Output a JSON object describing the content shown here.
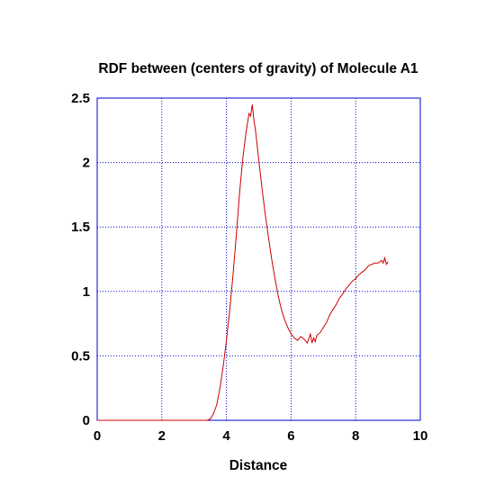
{
  "chart_data": {
    "type": "line",
    "title": "RDF between (centers of gravity) of Molecule A1",
    "xlabel": "Distance",
    "ylabel": "",
    "xlim": [
      0,
      10
    ],
    "ylim": [
      0,
      2.5
    ],
    "x_ticks": [
      "0",
      "2",
      "4",
      "6",
      "8",
      "10"
    ],
    "y_ticks": [
      "0",
      "0.5",
      "1",
      "1.5",
      "2",
      "2.5"
    ],
    "grid": true,
    "legend": "none",
    "colors": {
      "series": "#cc0000",
      "grid": "#0000cc",
      "axes": "#0000cc"
    },
    "series": [
      {
        "x": [
          0,
          1,
          2,
          3,
          3.4,
          3.5,
          3.6,
          3.7,
          3.8,
          3.9,
          4.0,
          4.1,
          4.2,
          4.3,
          4.4,
          4.5,
          4.6,
          4.7,
          4.75,
          4.8,
          4.85,
          4.9,
          5.0,
          5.1,
          5.2,
          5.3,
          5.4,
          5.5,
          5.6,
          5.7,
          5.8,
          5.9,
          6.0,
          6.1,
          6.2,
          6.3,
          6.4,
          6.5,
          6.6,
          6.65,
          6.7,
          6.75,
          6.8,
          6.9,
          7.0,
          7.1,
          7.2,
          7.3,
          7.4,
          7.5,
          7.6,
          7.7,
          7.8,
          7.9,
          8.0,
          8.1,
          8.2,
          8.3,
          8.4,
          8.5,
          8.6,
          8.7,
          8.8,
          8.85,
          8.9,
          8.95,
          9.0
        ],
        "y": [
          0,
          0,
          0,
          0,
          0,
          0.01,
          0.05,
          0.12,
          0.25,
          0.42,
          0.62,
          0.85,
          1.12,
          1.42,
          1.75,
          2.02,
          2.22,
          2.38,
          2.36,
          2.45,
          2.33,
          2.25,
          2.02,
          1.8,
          1.6,
          1.42,
          1.25,
          1.1,
          0.97,
          0.86,
          0.78,
          0.72,
          0.67,
          0.64,
          0.62,
          0.65,
          0.63,
          0.6,
          0.67,
          0.6,
          0.64,
          0.61,
          0.66,
          0.68,
          0.72,
          0.76,
          0.82,
          0.86,
          0.9,
          0.95,
          0.98,
          1.02,
          1.05,
          1.08,
          1.1,
          1.13,
          1.15,
          1.17,
          1.2,
          1.21,
          1.22,
          1.22,
          1.24,
          1.22,
          1.26,
          1.21,
          1.23
        ]
      }
    ]
  }
}
